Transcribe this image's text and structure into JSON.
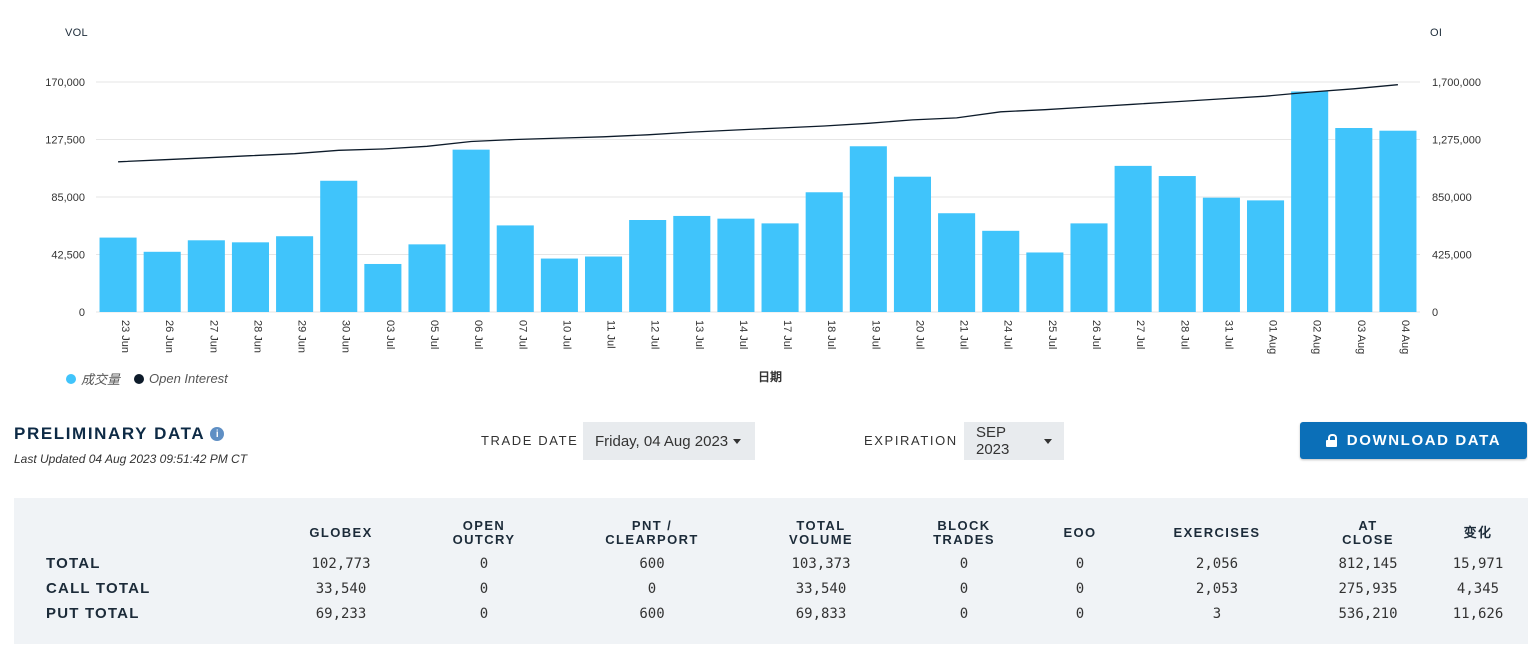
{
  "chart": {
    "left_axis_title": "VOL",
    "right_axis_title": "OI",
    "x_axis_title": "日期",
    "legend": [
      {
        "label": "成交量",
        "color": "#40c4fb"
      },
      {
        "label": "Open Interest",
        "color": "#0d1b2a"
      }
    ]
  },
  "chart_data": {
    "type": "bar",
    "categories": [
      "23 Jun",
      "26 Jun",
      "27 Jun",
      "28 Jun",
      "29 Jun",
      "30 Jun",
      "03 Jul",
      "05 Jul",
      "06 Jul",
      "07 Jul",
      "10 Jul",
      "11 Jul",
      "12 Jul",
      "13 Jul",
      "14 Jul",
      "17 Jul",
      "18 Jul",
      "19 Jul",
      "20 Jul",
      "21 Jul",
      "24 Jul",
      "25 Jul",
      "26 Jul",
      "27 Jul",
      "28 Jul",
      "31 Jul",
      "01 Aug",
      "02 Aug",
      "03 Aug",
      "04 Aug"
    ],
    "series": [
      {
        "name": "成交量",
        "type": "bar",
        "axis": "left",
        "color": "#40c4fb",
        "values": [
          55000,
          44500,
          53000,
          51500,
          56000,
          97000,
          35500,
          50000,
          120000,
          64000,
          39500,
          41000,
          68000,
          71000,
          69000,
          65500,
          88500,
          122500,
          100000,
          73000,
          60000,
          44000,
          65500,
          108000,
          100500,
          84500,
          82500,
          163000,
          136000,
          134000
        ]
      },
      {
        "name": "Open Interest",
        "type": "line",
        "axis": "right",
        "color": "#0d1b2a",
        "values": [
          1110000,
          1125000,
          1140000,
          1155000,
          1170000,
          1195000,
          1205000,
          1225000,
          1260000,
          1275000,
          1285000,
          1295000,
          1310000,
          1330000,
          1345000,
          1360000,
          1375000,
          1395000,
          1420000,
          1435000,
          1480000,
          1495000,
          1515000,
          1535000,
          1555000,
          1575000,
          1595000,
          1625000,
          1650000,
          1680000
        ]
      }
    ],
    "ylim": [
      0,
      170000
    ],
    "y_ticks": [
      "0",
      "42,500",
      "85,000",
      "127,500",
      "170,000"
    ],
    "y2lim": [
      0,
      1700000
    ],
    "y2_ticks": [
      "0",
      "425,000",
      "850,000",
      "1,275,000",
      "1,700,000"
    ],
    "xlabel": "日期",
    "ylabel": "VOL",
    "y2label": "OI",
    "legend_position": "bottom-left",
    "grid": true
  },
  "controls": {
    "title": "PRELIMINARY DATA",
    "info_glyph": "i",
    "last_updated": "Last Updated 04 Aug 2023 09:51:42 PM CT",
    "trade_date_label": "TRADE DATE",
    "trade_date_value": "Friday, 04 Aug 2023",
    "expiration_label": "EXPIRATION",
    "expiration_value": "SEP 2023",
    "download_label": "DOWNLOAD DATA"
  },
  "table": {
    "headers": [
      [
        "GLOBEX"
      ],
      [
        "OPEN",
        "OUTCRY"
      ],
      [
        "PNT /",
        "CLEARPORT"
      ],
      [
        "TOTAL",
        "VOLUME"
      ],
      [
        "BLOCK",
        "TRADES"
      ],
      [
        "EOO"
      ],
      [
        "EXERCISES"
      ],
      [
        "AT",
        "CLOSE"
      ],
      [
        "变化"
      ]
    ],
    "rows": [
      {
        "label": "TOTAL",
        "cells": [
          "102,773",
          "0",
          "600",
          "103,373",
          "0",
          "0",
          "2,056",
          "812,145",
          "15,971"
        ]
      },
      {
        "label": "CALL TOTAL",
        "cells": [
          "33,540",
          "0",
          "0",
          "33,540",
          "0",
          "0",
          "2,053",
          "275,935",
          "4,345"
        ]
      },
      {
        "label": "PUT TOTAL",
        "cells": [
          "69,233",
          "0",
          "600",
          "69,833",
          "0",
          "0",
          "3",
          "536,210",
          "11,626"
        ]
      }
    ]
  }
}
